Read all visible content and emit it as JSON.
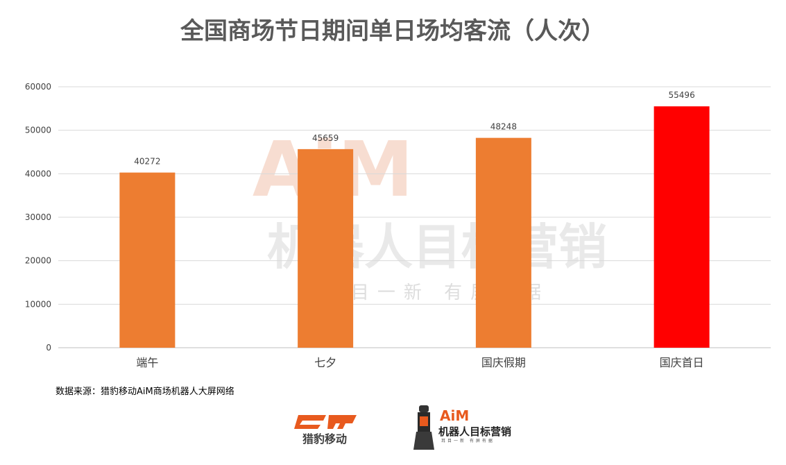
{
  "chart_data": {
    "type": "bar",
    "title": "全国商场节日期间单日场均客流（人次）",
    "categories": [
      "端午",
      "七夕",
      "国庆假期",
      "国庆首日"
    ],
    "values": [
      40272,
      45659,
      48248,
      55496
    ],
    "bar_colors": [
      "#ed7d31",
      "#ed7d31",
      "#ed7d31",
      "#ff0000"
    ],
    "ylim": [
      0,
      60000
    ],
    "yticks": [
      0,
      10000,
      20000,
      30000,
      40000,
      50000,
      60000
    ],
    "grid": true,
    "xlabel": "",
    "ylabel": ""
  },
  "source": "数据来源：猎豹移动AiM商场机器人大屏网络",
  "logos": {
    "cm_name": "猎豹移动",
    "aim_title": "AiM",
    "aim_subtitle": "机器人目标营销",
    "aim_tagline": "耳目一新 有屏有据"
  },
  "watermark": {
    "line1": "AiM",
    "line2": "机器人目标营销",
    "line3": "耳目一新 有屏有据"
  },
  "colors": {
    "bar": "#ed7d31",
    "highlight": "#ff0000",
    "grid": "#d9d9d9",
    "title": "#595959"
  }
}
